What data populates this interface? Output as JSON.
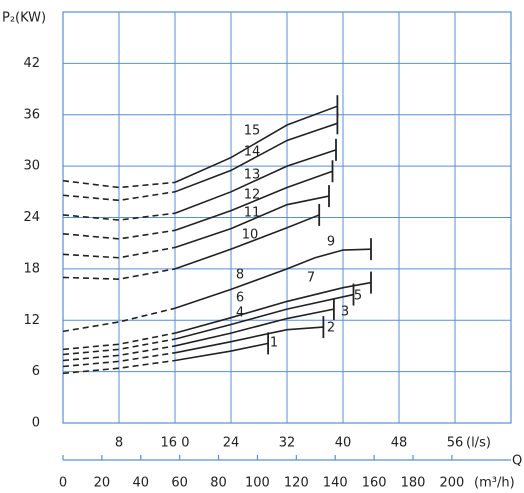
{
  "chart_data": {
    "type": "line",
    "y_label": "P₂(KW)",
    "x_label": "(l/s)",
    "x2_label": "(m³/h)",
    "q_label": "Q",
    "xlim": [
      0,
      64
    ],
    "xticks": [
      8,
      {
        "value": 16,
        "label": "16 0"
      },
      24,
      32,
      40,
      48,
      56
    ],
    "x2lim": [
      0,
      230.4
    ],
    "x2ticks": [
      0,
      20,
      40,
      60,
      80,
      100,
      120,
      140,
      160,
      180,
      200
    ],
    "ylim": [
      0,
      48
    ],
    "yticks": [
      0,
      6,
      12,
      18,
      24,
      30,
      36,
      42
    ],
    "grid": true,
    "grid_color": "#5a8fd8",
    "dashed_below_x": 16,
    "annotations": [
      "4",
      "6",
      "8"
    ],
    "series": [
      {
        "name": "1",
        "color": "#222",
        "x": [
          0,
          8,
          16,
          24,
          29.3
        ],
        "values": [
          5.8,
          6.4,
          7.3,
          8.4,
          9.3
        ]
      },
      {
        "name": "2",
        "color": "#222",
        "x": [
          0,
          8,
          16,
          24,
          32,
          37.2
        ],
        "values": [
          6.6,
          7.2,
          8.2,
          9.5,
          10.9,
          11.2
        ]
      },
      {
        "name": "3",
        "color": "#222",
        "x": [
          0,
          8,
          16,
          24,
          32,
          38.7
        ],
        "values": [
          7.3,
          7.9,
          9.0,
          10.5,
          12.2,
          13.3
        ]
      },
      {
        "name": "5",
        "color": "#222",
        "x": [
          0,
          8,
          16,
          24,
          32,
          41.5
        ],
        "values": [
          8.0,
          8.6,
          9.8,
          11.5,
          13.3,
          15.0
        ]
      },
      {
        "name": "7",
        "color": "#222",
        "x": [
          0,
          8,
          16,
          24,
          32,
          40,
          44
        ],
        "values": [
          8.6,
          9.2,
          10.5,
          12.3,
          14.2,
          15.8,
          16.4
        ]
      },
      {
        "name": "9",
        "color": "#222",
        "x": [
          0,
          8,
          16,
          24,
          32,
          36,
          40,
          44
        ],
        "values": [
          10.7,
          11.8,
          13.4,
          15.6,
          18.0,
          19.3,
          20.2,
          20.3
        ]
      },
      {
        "name": "10",
        "color": "#222",
        "x": [
          0,
          8,
          16,
          24,
          32,
          36.6
        ],
        "values": [
          17.0,
          16.8,
          18.0,
          20.3,
          22.8,
          24.3
        ]
      },
      {
        "name": "11",
        "color": "#222",
        "x": [
          0,
          8,
          16,
          24,
          32,
          38
        ],
        "values": [
          19.7,
          19.3,
          20.5,
          22.7,
          25.5,
          26.5
        ]
      },
      {
        "name": "12",
        "color": "#222",
        "x": [
          0,
          8,
          16,
          24,
          32,
          38.5
        ],
        "values": [
          22.1,
          21.5,
          22.5,
          24.8,
          27.5,
          29.4
        ]
      },
      {
        "name": "13",
        "color": "#222",
        "x": [
          0,
          8,
          16,
          24,
          32,
          39
        ],
        "values": [
          24.3,
          23.7,
          24.5,
          27.0,
          30.0,
          31.9
        ]
      },
      {
        "name": "14",
        "color": "#222",
        "x": [
          0,
          8,
          16,
          24,
          32,
          39.2
        ],
        "values": [
          26.6,
          26.0,
          27.0,
          29.5,
          33.0,
          35.0
        ]
      },
      {
        "name": "15",
        "color": "#222",
        "x": [
          0,
          8,
          16,
          24,
          32,
          39.2
        ],
        "values": [
          28.3,
          27.5,
          28.1,
          31.0,
          34.8,
          37.0
        ]
      }
    ]
  }
}
